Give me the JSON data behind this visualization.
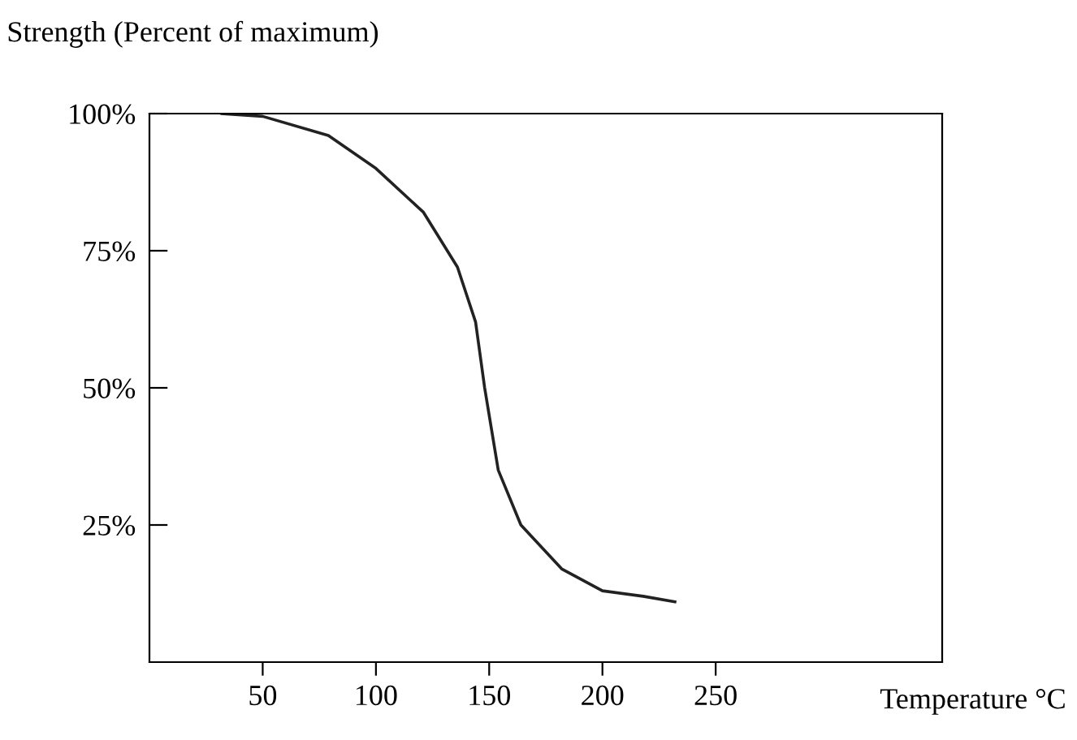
{
  "chart_data": {
    "type": "line",
    "ylabel": "Strength (Percent of maximum)",
    "xlabel": "Temperature °C",
    "x": [
      32,
      50,
      79,
      100,
      121,
      136,
      144,
      148,
      154,
      164,
      182,
      200,
      218,
      232
    ],
    "series": [
      {
        "color": "#222222",
        "values": [
          100,
          99.5,
          96,
          90,
          82,
          72,
          62,
          50,
          35,
          25,
          17,
          13,
          12,
          11
        ]
      }
    ],
    "xlim": [
      0,
      350
    ],
    "ylim": [
      0,
      100
    ],
    "xticks": [
      50,
      100,
      150,
      200,
      250
    ],
    "yticks": [
      {
        "value": 25,
        "label": "25%"
      },
      {
        "value": 50,
        "label": "50%"
      },
      {
        "value": 75,
        "label": "75%"
      },
      {
        "value": 100,
        "label": "100%"
      }
    ],
    "grid": false,
    "legend": false,
    "marker": "none",
    "line_style": "solid"
  }
}
